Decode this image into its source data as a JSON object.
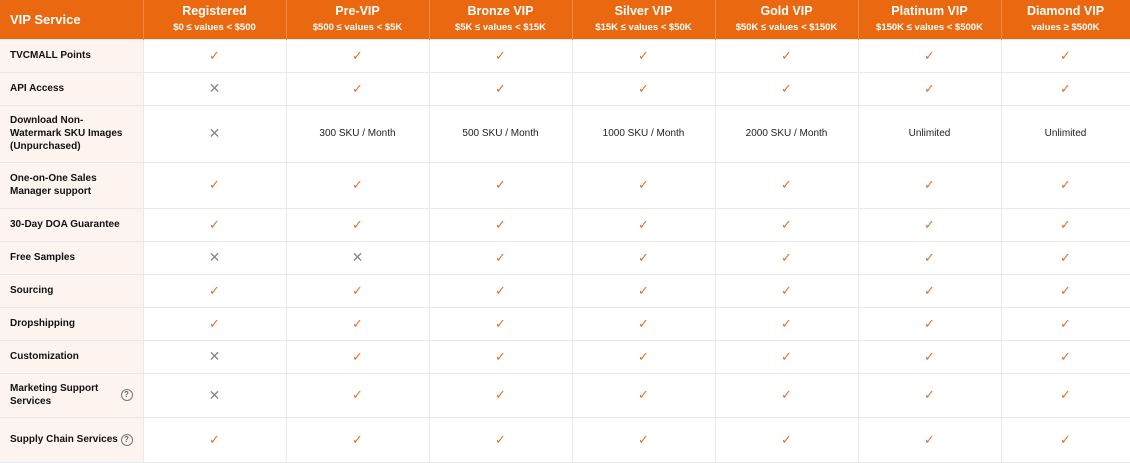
{
  "header": {
    "service_label": "VIP Service",
    "tiers": [
      {
        "name": "Registered",
        "range": "$0 ≤ values < $500"
      },
      {
        "name": "Pre-VIP",
        "range": "$500 ≤ values < $5K"
      },
      {
        "name": "Bronze VIP",
        "range": "$5K ≤ values < $15K"
      },
      {
        "name": "Silver VIP",
        "range": "$15K ≤ values < $50K"
      },
      {
        "name": "Gold VIP",
        "range": "$50K ≤ values < $150K"
      },
      {
        "name": "Platinum VIP",
        "range": "$150K ≤ values < $500K"
      },
      {
        "name": "Diamond VIP",
        "range": "values ≥ $500K"
      }
    ]
  },
  "colors": {
    "accent": "#ea6910",
    "check": "#e0702c",
    "cross": "#888888",
    "label_bg": "#fdf4ef"
  },
  "rows": [
    {
      "service": "TVCMALL Points",
      "help": false,
      "cells": [
        "check",
        "check",
        "check",
        "check",
        "check",
        "check",
        "check"
      ]
    },
    {
      "service": "API Access",
      "help": false,
      "cells": [
        "cross",
        "check",
        "check",
        "check",
        "check",
        "check",
        "check"
      ]
    },
    {
      "service": "Download Non-Watermark SKU Images (Unpurchased)",
      "help": false,
      "cells": [
        "cross",
        "300 SKU / Month",
        "500 SKU / Month",
        "1000 SKU / Month",
        "2000 SKU / Month",
        "Unlimited",
        "Unlimited"
      ]
    },
    {
      "service": "One-on-One Sales Manager support",
      "help": false,
      "cells": [
        "check",
        "check",
        "check",
        "check",
        "check",
        "check",
        "check"
      ]
    },
    {
      "service": "30-Day DOA Guarantee",
      "help": false,
      "cells": [
        "check",
        "check",
        "check",
        "check",
        "check",
        "check",
        "check"
      ]
    },
    {
      "service": "Free Samples",
      "help": false,
      "cells": [
        "cross",
        "cross",
        "check",
        "check",
        "check",
        "check",
        "check"
      ]
    },
    {
      "service": "Sourcing",
      "help": false,
      "cells": [
        "check",
        "check",
        "check",
        "check",
        "check",
        "check",
        "check"
      ]
    },
    {
      "service": "Dropshipping",
      "help": false,
      "cells": [
        "check",
        "check",
        "check",
        "check",
        "check",
        "check",
        "check"
      ]
    },
    {
      "service": "Customization",
      "help": false,
      "cells": [
        "cross",
        "check",
        "check",
        "check",
        "check",
        "check",
        "check"
      ]
    },
    {
      "service": "Marketing Support Services",
      "help": true,
      "cells": [
        "cross",
        "check",
        "check",
        "check",
        "check",
        "check",
        "check"
      ]
    },
    {
      "service": "Supply Chain Services",
      "help": true,
      "cells": [
        "check",
        "check",
        "check",
        "check",
        "check",
        "check",
        "check"
      ]
    }
  ]
}
